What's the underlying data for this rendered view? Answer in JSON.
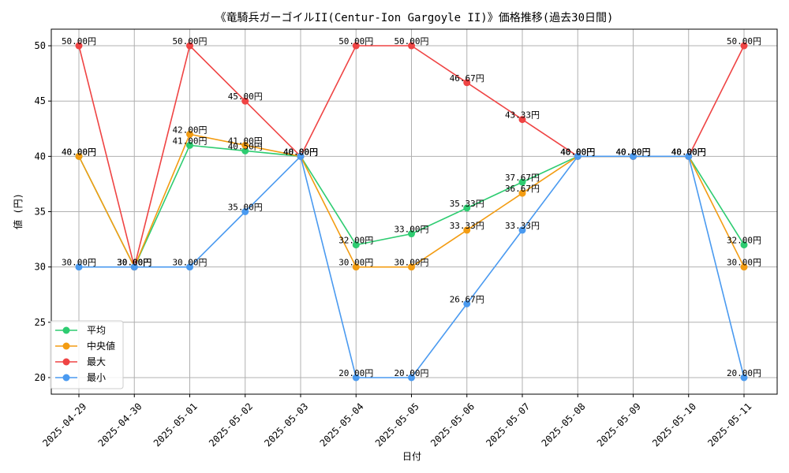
{
  "chart_data": {
    "type": "line",
    "title": "《竜騎兵ガーゴイルII(Centur-Ion Gargoyle II)》価格推移(過去30日間)",
    "xlabel": "日付",
    "ylabel": "値 (円)",
    "ylim": [
      18.5,
      51.5
    ],
    "yticks": [
      20,
      25,
      30,
      35,
      40,
      45,
      50
    ],
    "grid": true,
    "legend_position": "lower-left",
    "value_suffix": "円",
    "categories": [
      "2025-04-29",
      "2025-04-30",
      "2025-05-01",
      "2025-05-02",
      "2025-05-03",
      "2025-05-04",
      "2025-05-05",
      "2025-05-06",
      "2025-05-07",
      "2025-05-08",
      "2025-05-09",
      "2025-05-10",
      "2025-05-11"
    ],
    "series": [
      {
        "name": "平均",
        "color": "#2ecc71",
        "values": [
          40.0,
          30.0,
          41.0,
          40.5,
          40.0,
          32.0,
          33.0,
          35.33,
          37.67,
          40.0,
          40.0,
          40.0,
          32.0
        ]
      },
      {
        "name": "中央値",
        "color": "#f39c12",
        "values": [
          40.0,
          30.0,
          42.0,
          41.0,
          40.0,
          30.0,
          30.0,
          33.33,
          36.67,
          40.0,
          40.0,
          40.0,
          30.0
        ]
      },
      {
        "name": "最大",
        "color": "#ef4444",
        "values": [
          50.0,
          30.0,
          50.0,
          45.0,
          40.0,
          50.0,
          50.0,
          46.67,
          43.33,
          40.0,
          40.0,
          40.0,
          50.0
        ]
      },
      {
        "name": "最小",
        "color": "#4a9af0",
        "values": [
          30.0,
          30.0,
          30.0,
          35.0,
          40.0,
          20.0,
          20.0,
          26.67,
          33.33,
          40.0,
          40.0,
          40.0,
          20.0
        ]
      }
    ]
  }
}
